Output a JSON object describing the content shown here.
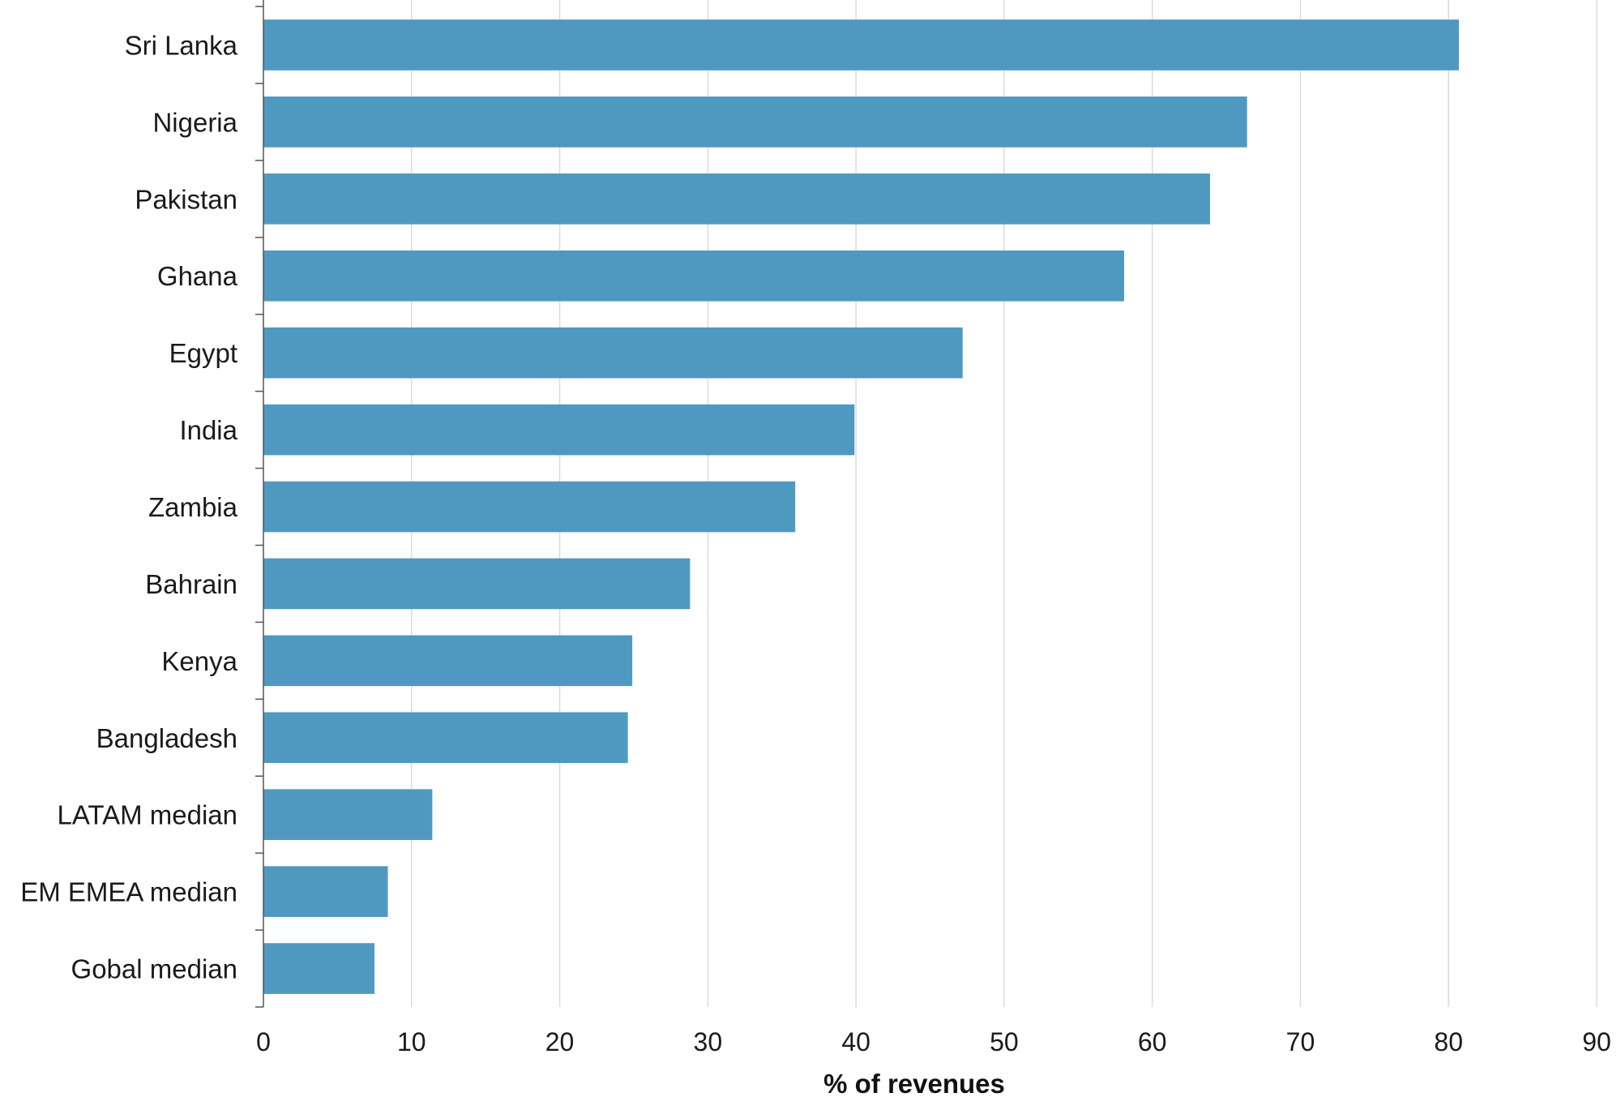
{
  "chart_data": {
    "type": "bar",
    "orientation": "horizontal",
    "categories": [
      "Sri Lanka",
      "Nigeria",
      "Pakistan",
      "Ghana",
      "Egypt",
      "India",
      "Zambia",
      "Bahrain",
      "Kenya",
      "Bangladesh",
      "LATAM median",
      "EM EMEA median",
      "Gobal median"
    ],
    "values": [
      80.7,
      66.4,
      63.9,
      58.1,
      47.2,
      39.9,
      35.9,
      28.8,
      24.9,
      24.6,
      11.4,
      8.4,
      7.5
    ],
    "xlabel": "% of revenues",
    "xlim": [
      0,
      90
    ],
    "xticks": [
      "0",
      "10",
      "20",
      "30",
      "40",
      "50",
      "60",
      "70",
      "80",
      "90"
    ],
    "grid": "vertical",
    "colors": {
      "bar": "#4f99c1",
      "grid": "#dcdcdc",
      "axis": "#555555"
    }
  }
}
